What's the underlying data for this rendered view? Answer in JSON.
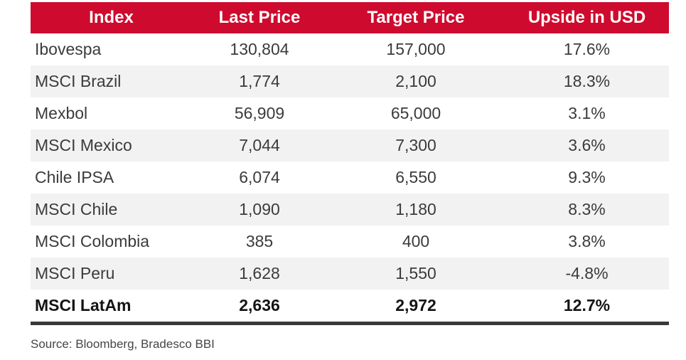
{
  "table": {
    "columns": [
      "Index",
      "Last Price",
      "Target Price",
      "Upside in USD"
    ],
    "rows": [
      {
        "index": "Ibovespa",
        "last_price": "130,804",
        "target_price": "157,000",
        "upside": "17.6%",
        "bold": false
      },
      {
        "index": "MSCI Brazil",
        "last_price": "1,774",
        "target_price": "2,100",
        "upside": "18.3%",
        "bold": false
      },
      {
        "index": "Mexbol",
        "last_price": "56,909",
        "target_price": "65,000",
        "upside": "3.1%",
        "bold": false
      },
      {
        "index": "MSCI Mexico",
        "last_price": "7,044",
        "target_price": "7,300",
        "upside": "3.6%",
        "bold": false
      },
      {
        "index": "Chile IPSA",
        "last_price": "6,074",
        "target_price": "6,550",
        "upside": "9.3%",
        "bold": false
      },
      {
        "index": "MSCI Chile",
        "last_price": "1,090",
        "target_price": "1,180",
        "upside": "8.3%",
        "bold": false
      },
      {
        "index": "MSCI Colombia",
        "last_price": "385",
        "target_price": "400",
        "upside": "3.8%",
        "bold": false
      },
      {
        "index": "MSCI Peru",
        "last_price": "1,628",
        "target_price": "1,550",
        "upside": "-4.8%",
        "bold": false
      },
      {
        "index": "MSCI LatAm",
        "last_price": "2,636",
        "target_price": "2,972",
        "upside": "12.7%",
        "bold": true
      }
    ]
  },
  "source": "Source: Bloomberg, Bradesco BBI",
  "colors": {
    "header_bg": "#CE0B2E",
    "header_text": "#FFFFFF",
    "alt_row_bg": "#F2F2F2",
    "body_text": "#3B3B3B",
    "bold_row_text": "#141414",
    "bottom_border": "#3A3A3A",
    "source_text": "#454545"
  },
  "chart_data": {
    "type": "table",
    "title": "",
    "columns": [
      "Index",
      "Last Price",
      "Target Price",
      "Upside in USD"
    ],
    "rows": [
      [
        "Ibovespa",
        130804,
        157000,
        17.6
      ],
      [
        "MSCI Brazil",
        1774,
        2100,
        18.3
      ],
      [
        "Mexbol",
        56909,
        65000,
        3.1
      ],
      [
        "MSCI Mexico",
        7044,
        7300,
        3.6
      ],
      [
        "Chile IPSA",
        6074,
        6550,
        9.3
      ],
      [
        "MSCI Chile",
        1090,
        1180,
        8.3
      ],
      [
        "MSCI Colombia",
        385,
        400,
        3.8
      ],
      [
        "MSCI Peru",
        1628,
        1550,
        -4.8
      ],
      [
        "MSCI LatAm",
        2636,
        2972,
        12.7
      ]
    ],
    "notes": "Upside in USD values are percentages; last row (MSCI LatAm) is a bold summary row",
    "source": "Source: Bloomberg, Bradesco BBI"
  }
}
